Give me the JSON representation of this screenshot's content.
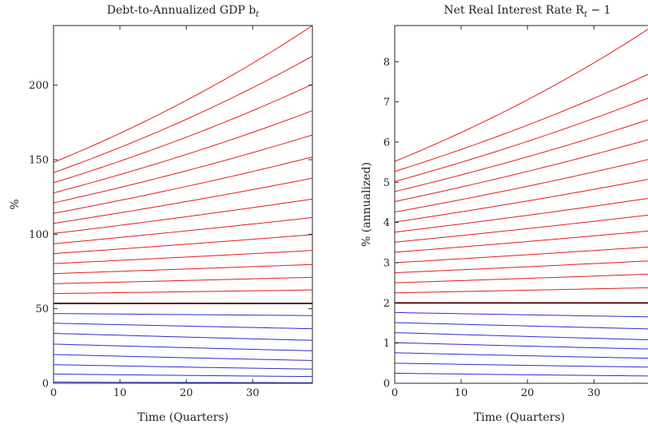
{
  "chart_data": [
    {
      "type": "line",
      "title": "Debt-to-Annualized GDP b",
      "title_subscript": "t",
      "xlabel": "Time (Quarters)",
      "ylabel": "%",
      "xlim": [
        0,
        39
      ],
      "ylim": [
        0,
        240
      ],
      "xticks": [
        0,
        10,
        20,
        30
      ],
      "yticks": [
        0,
        50,
        100,
        150,
        200
      ],
      "x": [
        0,
        39
      ],
      "grid": false,
      "colors": {
        "above": "#e41a1c",
        "steady": "#5a0a0a",
        "below": "#2b2bd9"
      },
      "series": [
        {
          "group": "below",
          "start": 0.8,
          "end": 0.4
        },
        {
          "group": "below",
          "start": 6.2,
          "end": 4.5
        },
        {
          "group": "below",
          "start": 12.5,
          "end": 9.5
        },
        {
          "group": "below",
          "start": 19.3,
          "end": 15.3
        },
        {
          "group": "below",
          "start": 26.3,
          "end": 21.8
        },
        {
          "group": "below",
          "start": 33.5,
          "end": 28.8
        },
        {
          "group": "below",
          "start": 40.3,
          "end": 36.6
        },
        {
          "group": "below",
          "start": 46.8,
          "end": 45.4
        },
        {
          "group": "steady",
          "start": 53.6,
          "end": 53.6
        },
        {
          "group": "above",
          "start": 60.2,
          "end": 62.6
        },
        {
          "group": "above",
          "start": 66.8,
          "end": 71.1
        },
        {
          "group": "above",
          "start": 73.6,
          "end": 79.7
        },
        {
          "group": "above",
          "start": 80.3,
          "end": 89.1
        },
        {
          "group": "above",
          "start": 87.0,
          "end": 99.7
        },
        {
          "group": "above",
          "start": 93.6,
          "end": 111.2
        },
        {
          "group": "above",
          "start": 100.5,
          "end": 123.6
        },
        {
          "group": "above",
          "start": 107.3,
          "end": 137.6
        },
        {
          "group": "above",
          "start": 114.0,
          "end": 151.8
        },
        {
          "group": "above",
          "start": 121.0,
          "end": 166.6
        },
        {
          "group": "above",
          "start": 127.7,
          "end": 182.9
        },
        {
          "group": "above",
          "start": 134.5,
          "end": 200.6
        },
        {
          "group": "above",
          "start": 141.3,
          "end": 219.5
        },
        {
          "group": "above",
          "start": 148.2,
          "end": 240.0
        }
      ]
    },
    {
      "type": "line",
      "title": "Net Real Interest Rate R",
      "title_subscript": "t",
      "title_suffix": " − 1",
      "xlabel": "Time (Quarters)",
      "ylabel": "% (annualized)",
      "xlim": [
        0,
        39
      ],
      "ylim": [
        0,
        8.9
      ],
      "xticks": [
        0,
        10,
        20,
        30
      ],
      "yticks": [
        0,
        1,
        2,
        3,
        4,
        5,
        6,
        7,
        8
      ],
      "x": [
        0,
        39
      ],
      "grid": false,
      "colors": {
        "above": "#e41a1c",
        "steady": "#5a0a0a",
        "below": "#2b2bd9"
      },
      "series": [
        {
          "group": "below",
          "start": 0.25,
          "end": 0.18
        },
        {
          "group": "below",
          "start": 0.5,
          "end": 0.4
        },
        {
          "group": "below",
          "start": 0.76,
          "end": 0.62
        },
        {
          "group": "below",
          "start": 1.01,
          "end": 0.85
        },
        {
          "group": "below",
          "start": 1.26,
          "end": 1.08
        },
        {
          "group": "below",
          "start": 1.51,
          "end": 1.35
        },
        {
          "group": "below",
          "start": 1.76,
          "end": 1.65
        },
        {
          "group": "steady",
          "start": 2.0,
          "end": 2.0
        },
        {
          "group": "above",
          "start": 2.25,
          "end": 2.38
        },
        {
          "group": "above",
          "start": 2.5,
          "end": 2.72
        },
        {
          "group": "above",
          "start": 2.75,
          "end": 3.05
        },
        {
          "group": "above",
          "start": 3.0,
          "end": 3.4
        },
        {
          "group": "above",
          "start": 3.26,
          "end": 3.8
        },
        {
          "group": "above",
          "start": 3.51,
          "end": 4.2
        },
        {
          "group": "above",
          "start": 3.76,
          "end": 4.62
        },
        {
          "group": "above",
          "start": 4.01,
          "end": 5.1
        },
        {
          "group": "above",
          "start": 4.26,
          "end": 5.6
        },
        {
          "group": "above",
          "start": 4.52,
          "end": 6.1
        },
        {
          "group": "above",
          "start": 4.77,
          "end": 6.6
        },
        {
          "group": "above",
          "start": 5.02,
          "end": 7.15
        },
        {
          "group": "above",
          "start": 5.27,
          "end": 7.75
        },
        {
          "group": "above",
          "start": 5.52,
          "end": 8.9
        }
      ]
    }
  ]
}
